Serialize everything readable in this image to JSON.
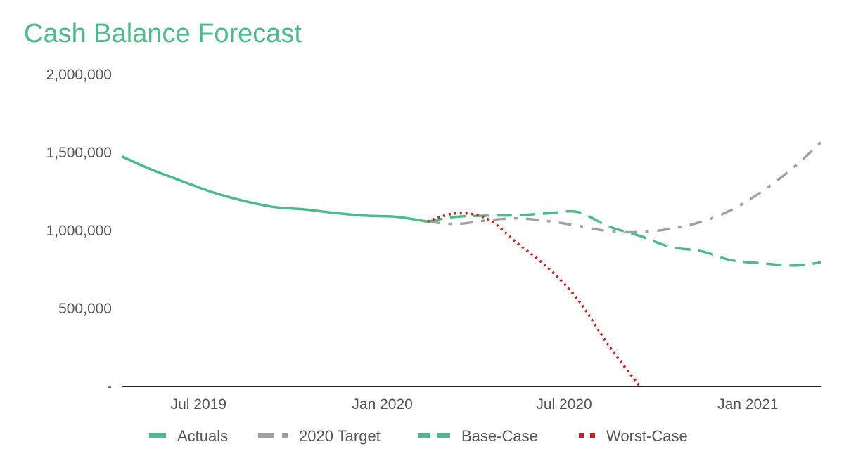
{
  "chart_data": {
    "type": "line",
    "title": "Cash Balance Forecast",
    "xlabel": "",
    "ylabel": "",
    "ylim": [
      0,
      2000000
    ],
    "xlim": [
      "2019-04-15",
      "2021-03-15"
    ],
    "y_ticks": [
      {
        "value": 2000000,
        "label": "2,000,000"
      },
      {
        "value": 1500000,
        "label": "1,500,000"
      },
      {
        "value": 1000000,
        "label": "1,000,000"
      },
      {
        "value": 500000,
        "label": "500,000"
      },
      {
        "value": 0,
        "label": "-"
      }
    ],
    "x_ticks": [
      {
        "date": "2019-07-01",
        "label": "Jul 2019"
      },
      {
        "date": "2020-01-01",
        "label": "Jan 2020"
      },
      {
        "date": "2020-07-01",
        "label": "Jul 2020"
      },
      {
        "date": "2021-01-01",
        "label": "Jan 2021"
      }
    ],
    "grid": false,
    "legend_position": "bottom",
    "series": [
      {
        "name": "Actuals",
        "color": "#4cbb8a",
        "style": "solid",
        "points": [
          [
            "2019-04-15",
            1475000
          ],
          [
            "2019-05-15",
            1390000
          ],
          [
            "2019-06-15",
            1315000
          ],
          [
            "2019-07-15",
            1245000
          ],
          [
            "2019-08-15",
            1190000
          ],
          [
            "2019-09-15",
            1150000
          ],
          [
            "2019-10-15",
            1135000
          ],
          [
            "2019-11-15",
            1112000
          ],
          [
            "2019-12-15",
            1095000
          ],
          [
            "2020-01-15",
            1088000
          ],
          [
            "2020-02-15",
            1057000
          ]
        ]
      },
      {
        "name": "2020 Target",
        "color": "#a0a0a0",
        "style": "dash-dot",
        "points": [
          [
            "2020-02-15",
            1057000
          ],
          [
            "2020-03-15",
            1042000
          ],
          [
            "2020-04-15",
            1065000
          ],
          [
            "2020-05-15",
            1078000
          ],
          [
            "2020-06-15",
            1060000
          ],
          [
            "2020-07-15",
            1030000
          ],
          [
            "2020-08-15",
            995000
          ],
          [
            "2020-09-15",
            990000
          ],
          [
            "2020-10-15",
            1010000
          ],
          [
            "2020-11-15",
            1055000
          ],
          [
            "2020-12-15",
            1130000
          ],
          [
            "2021-01-15",
            1250000
          ],
          [
            "2021-02-15",
            1400000
          ],
          [
            "2021-03-15",
            1565000
          ]
        ]
      },
      {
        "name": "Base-Case",
        "color": "#4cbb8a",
        "style": "dashed",
        "points": [
          [
            "2020-02-15",
            1057000
          ],
          [
            "2020-03-15",
            1088000
          ],
          [
            "2020-04-15",
            1095000
          ],
          [
            "2020-05-15",
            1098000
          ],
          [
            "2020-06-15",
            1110000
          ],
          [
            "2020-07-15",
            1118000
          ],
          [
            "2020-08-15",
            1025000
          ],
          [
            "2020-09-15",
            965000
          ],
          [
            "2020-10-15",
            895000
          ],
          [
            "2020-11-15",
            868000
          ],
          [
            "2020-12-15",
            810000
          ],
          [
            "2021-01-15",
            790000
          ],
          [
            "2021-02-15",
            775000
          ],
          [
            "2021-03-15",
            795000
          ]
        ]
      },
      {
        "name": "Worst-Case",
        "color": "#d7191c",
        "style": "dotted",
        "points": [
          [
            "2020-02-15",
            1057000
          ],
          [
            "2020-03-15",
            1110000
          ],
          [
            "2020-04-15",
            1075000
          ],
          [
            "2020-05-15",
            920000
          ],
          [
            "2020-06-15",
            760000
          ],
          [
            "2020-07-15",
            555000
          ],
          [
            "2020-08-15",
            260000
          ],
          [
            "2020-09-15",
            0
          ]
        ]
      }
    ]
  },
  "colors": {
    "title": "#4cbb8a",
    "axis": "#222222",
    "tick_text": "#555555"
  }
}
